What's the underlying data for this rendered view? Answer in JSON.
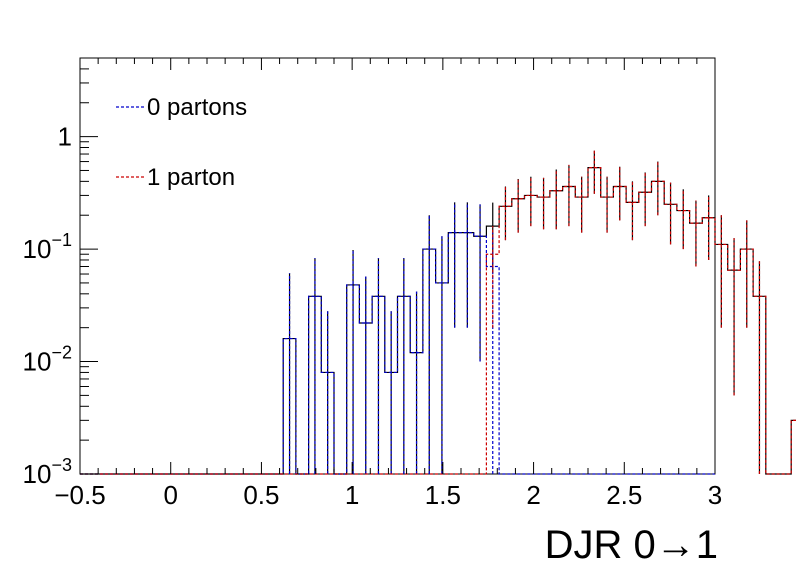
{
  "chart_data": {
    "type": "histogram",
    "xlabel": "DJR 0→1",
    "ylabel": "",
    "xlim": [
      -0.5,
      3.0
    ],
    "ylim": [
      0.001,
      5.0
    ],
    "y_scale": "log",
    "x_ticks": [
      {
        "value": -0.5,
        "label": "−0.5"
      },
      {
        "value": 0,
        "label": "0"
      },
      {
        "value": 0.5,
        "label": "0.5"
      },
      {
        "value": 1,
        "label": "1"
      },
      {
        "value": 1.5,
        "label": "1.5"
      },
      {
        "value": 2,
        "label": "2"
      },
      {
        "value": 2.5,
        "label": "2.5"
      },
      {
        "value": 3,
        "label": "3"
      }
    ],
    "y_ticks": [
      {
        "value": 0.001,
        "base": "10",
        "exp": "−3"
      },
      {
        "value": 0.01,
        "base": "10",
        "exp": "−2"
      },
      {
        "value": 0.1,
        "base": "10",
        "exp": "−1"
      },
      {
        "value": 1,
        "base": "1",
        "exp": ""
      }
    ],
    "grid": false,
    "legend_position": "top-left",
    "total_color": "#000000",
    "series": [
      {
        "name": "0 partons",
        "color": "#0000cc",
        "bin_start": -0.5,
        "bin_width": 0.07,
        "values": [
          0,
          0,
          0,
          0,
          0,
          0,
          0,
          0,
          0,
          0,
          0,
          0,
          0,
          0,
          0,
          0,
          0.016,
          0.001,
          0.038,
          0.008,
          0.001,
          0.048,
          0.022,
          0.038,
          0.008,
          0.038,
          0.012,
          0.1,
          0.05,
          0.14,
          0.14,
          0.13,
          0.07,
          0,
          0,
          0,
          0,
          0,
          0,
          0,
          0,
          0,
          0,
          0,
          0,
          0,
          0,
          0,
          0,
          0
        ],
        "errors": [
          0,
          0,
          0,
          0,
          0,
          0,
          0,
          0,
          0,
          0,
          0,
          0,
          0,
          0,
          0,
          0,
          0.045,
          0,
          0.045,
          0.02,
          0,
          0.05,
          0.035,
          0.045,
          0.02,
          0.045,
          0.03,
          0.1,
          0.08,
          0.12,
          0.12,
          0.12,
          0.07,
          0,
          0,
          0,
          0,
          0,
          0,
          0,
          0,
          0,
          0,
          0,
          0,
          0,
          0,
          0,
          0,
          0
        ]
      },
      {
        "name": "1 parton",
        "color": "#cc0000",
        "bin_start": -0.5,
        "bin_width": 0.07,
        "values": [
          0,
          0,
          0,
          0,
          0,
          0,
          0,
          0,
          0,
          0,
          0,
          0,
          0,
          0,
          0,
          0,
          0,
          0,
          0,
          0,
          0,
          0,
          0,
          0,
          0,
          0,
          0,
          0,
          0,
          0,
          0,
          0,
          0.09,
          0.24,
          0.28,
          0.3,
          0.29,
          0.33,
          0.36,
          0.29,
          0.53,
          0.29,
          0.36,
          0.26,
          0.32,
          0.4,
          0.25,
          0.22,
          0.17,
          0.19,
          0.11,
          0.065,
          0.1,
          0.038,
          0.001,
          0.001,
          0.003
        ],
        "errors": [
          0,
          0,
          0,
          0,
          0,
          0,
          0,
          0,
          0,
          0,
          0,
          0,
          0,
          0,
          0,
          0,
          0,
          0,
          0,
          0,
          0,
          0,
          0,
          0,
          0,
          0,
          0,
          0,
          0,
          0,
          0,
          0,
          0.07,
          0.12,
          0.14,
          0.14,
          0.14,
          0.18,
          0.2,
          0.15,
          0.22,
          0.15,
          0.18,
          0.14,
          0.16,
          0.2,
          0.14,
          0.12,
          0.1,
          0.11,
          0.09,
          0.06,
          0.08,
          0.04,
          0,
          0,
          0.006
        ]
      }
    ]
  }
}
